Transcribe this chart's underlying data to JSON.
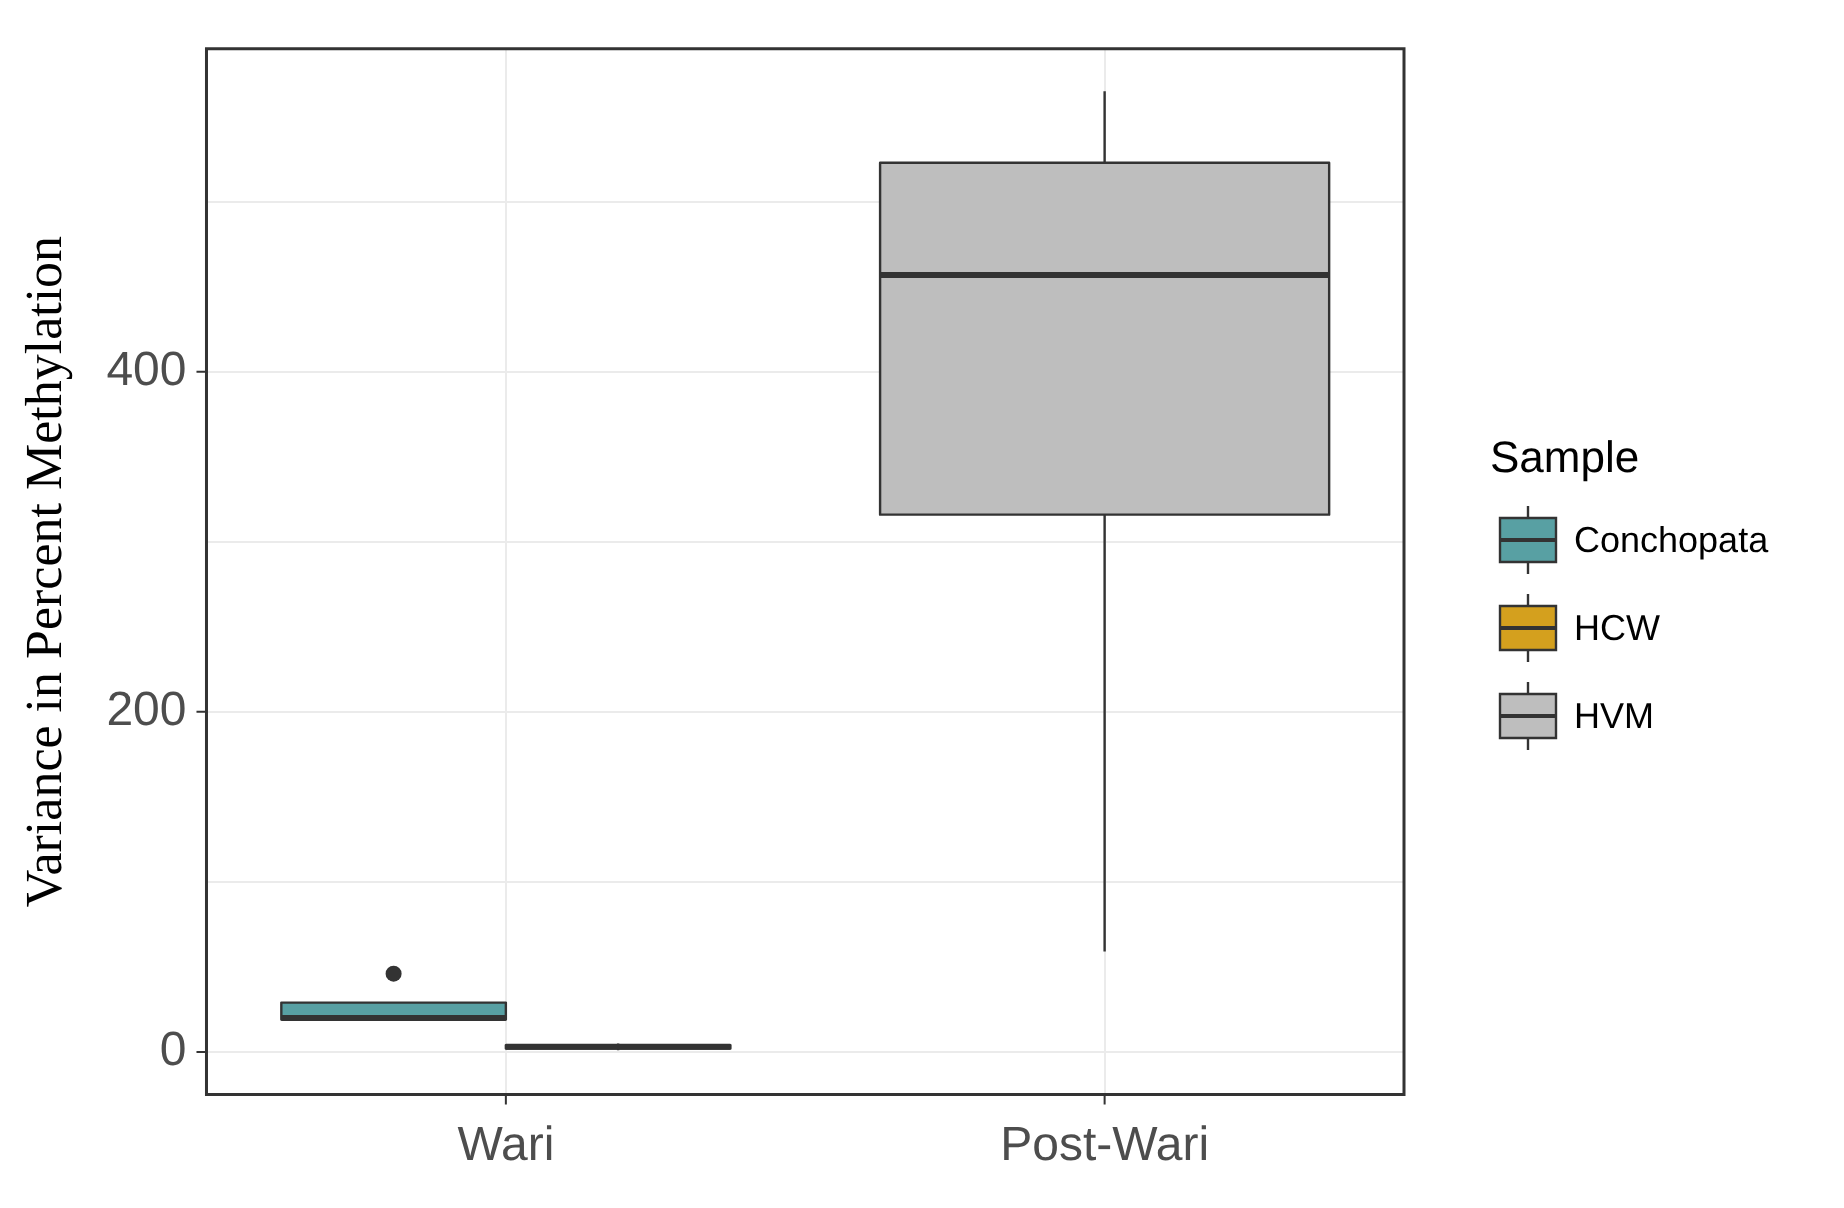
{
  "chart_data": {
    "type": "box",
    "ylabel": "Variance in Percent Methylation",
    "legend_title": "Sample",
    "categories": [
      "Wari",
      "Post-Wari"
    ],
    "series": [
      {
        "name": "Conchopata",
        "color": "#58a0a3",
        "boxes": [
          {
            "low": 19,
            "q1": 19,
            "median": 20,
            "q3": 29,
            "high": 29,
            "outliers": [
              46
            ]
          },
          null
        ]
      },
      {
        "name": "HCW",
        "color": "#d4a01e",
        "boxes": [
          {
            "low": 1,
            "q1": 2,
            "median": 3,
            "q3": 4,
            "high": 5
          },
          null
        ]
      },
      {
        "name": "HVM",
        "color": "#bebebe",
        "boxes": [
          null,
          {
            "low": 59,
            "q1": 316,
            "median": 457,
            "q3": 523,
            "high": 565
          }
        ]
      }
    ],
    "ylim": [
      -25,
      590
    ],
    "yticks": [
      0,
      {
        "value": 100,
        "label": null
      },
      200,
      {
        "value": 300,
        "label": null
      },
      400,
      {
        "value": 500,
        "label": null
      }
    ],
    "grid": true,
    "legend": "right"
  }
}
